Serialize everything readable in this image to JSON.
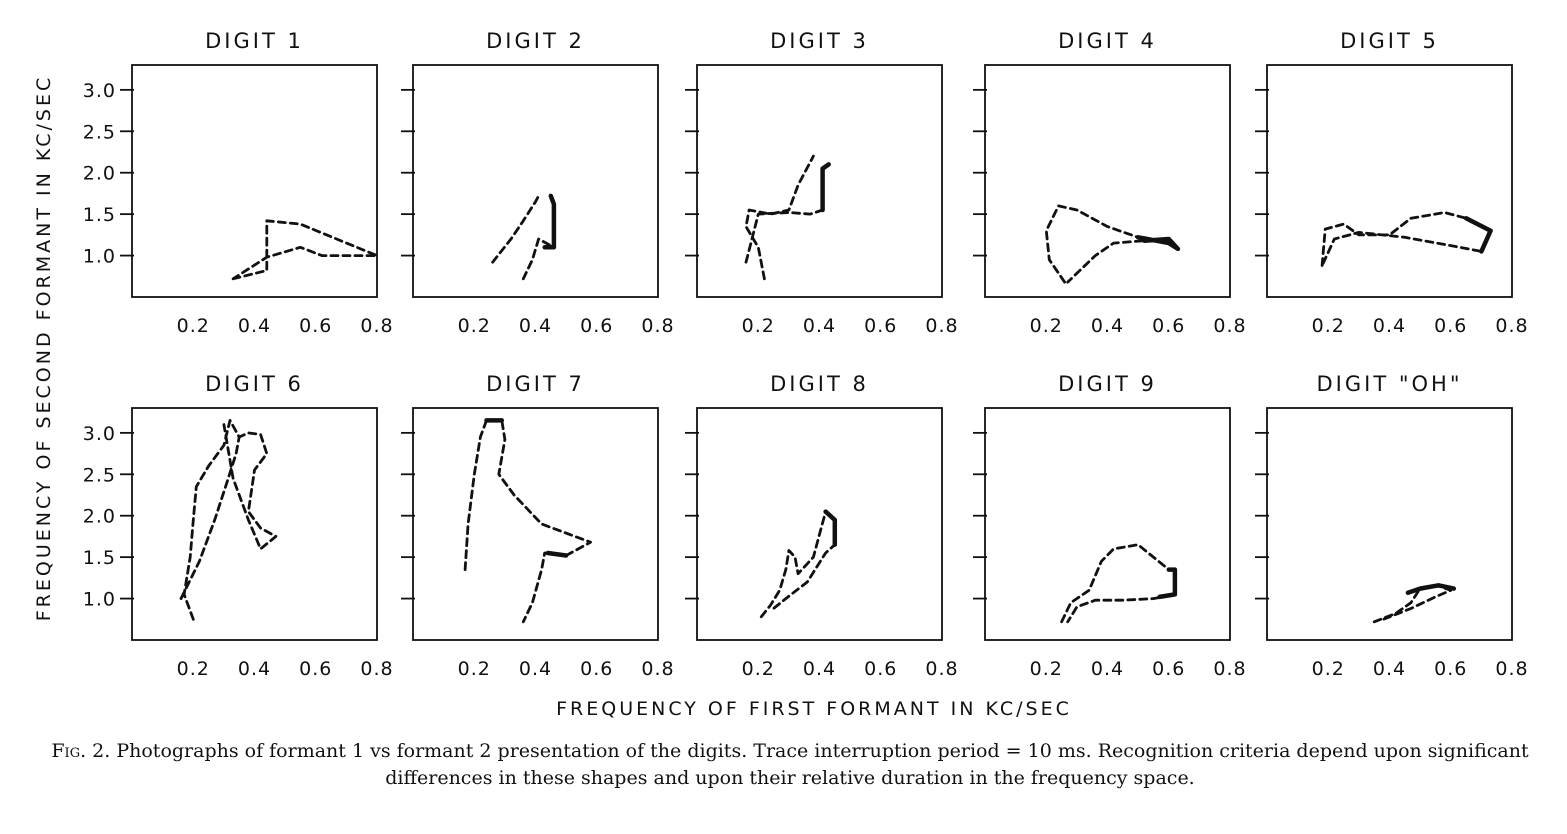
{
  "figure": {
    "y_axis_title": "FREQUENCY OF SECOND FORMANT IN KC/SEC",
    "x_axis_title": "FREQUENCY OF FIRST FORMANT IN KC/SEC",
    "caption_label": "Fig. 2.",
    "caption_text": "Photographs of formant 1 vs formant 2 presentation of the digits. Trace interruption period = 10 ms. Recognition criteria depend upon significant differences in these shapes and upon their relative duration in the frequency space."
  },
  "chart_data": [
    {
      "type": "line",
      "title": "DIGIT 1",
      "x_ticks": [
        "0.2",
        "0.4",
        "0.6",
        "0.8"
      ],
      "y_ticks": [
        "1.0",
        "1.5",
        "2.0",
        "2.5",
        "3.0"
      ],
      "xlim": [
        0,
        0.8
      ],
      "ylim": [
        0.5,
        3.3
      ],
      "series": [
        {
          "x": [
            0.33,
            0.44,
            0.44,
            0.55,
            0.8,
            0.62,
            0.55,
            0.44,
            0.33
          ],
          "y": [
            0.72,
            0.82,
            1.42,
            1.38,
            1.0,
            1.0,
            1.1,
            0.98,
            0.72
          ]
        }
      ],
      "solid_segments": []
    },
    {
      "type": "line",
      "title": "DIGIT 2",
      "x_ticks": [
        "0.2",
        "0.4",
        "0.6",
        "0.8"
      ],
      "y_ticks": [
        "",
        "",
        "",
        "",
        ""
      ],
      "xlim": [
        0,
        0.8
      ],
      "ylim": [
        0.5,
        3.3
      ],
      "series": [
        {
          "x": [
            0.26,
            0.32,
            0.36,
            0.4,
            0.41
          ],
          "y": [
            0.92,
            1.2,
            1.42,
            1.65,
            1.72
          ]
        },
        {
          "x": [
            0.36,
            0.39,
            0.41,
            0.46,
            0.46,
            0.45
          ],
          "y": [
            0.72,
            0.95,
            1.2,
            1.1,
            1.62,
            1.72
          ]
        }
      ],
      "solid_segments": [
        {
          "x": [
            0.43,
            0.46,
            0.46,
            0.45
          ],
          "y": [
            1.1,
            1.1,
            1.62,
            1.72
          ]
        }
      ]
    },
    {
      "type": "line",
      "title": "DIGIT 3",
      "x_ticks": [
        "0.2",
        "0.4",
        "0.6",
        "0.8"
      ],
      "y_ticks": [
        "",
        "",
        "",
        "",
        ""
      ],
      "xlim": [
        0,
        0.8
      ],
      "ylim": [
        0.5,
        3.3
      ],
      "series": [
        {
          "x": [
            0.22,
            0.2,
            0.16,
            0.17,
            0.24,
            0.3,
            0.33,
            0.38
          ],
          "y": [
            0.72,
            1.1,
            1.35,
            1.55,
            1.5,
            1.55,
            1.85,
            2.2
          ]
        },
        {
          "x": [
            0.16,
            0.2,
            0.3,
            0.37,
            0.41,
            0.41,
            0.43
          ],
          "y": [
            0.92,
            1.5,
            1.52,
            1.5,
            1.55,
            2.05,
            2.1
          ]
        }
      ],
      "solid_segments": [
        {
          "x": [
            0.41,
            0.41,
            0.43
          ],
          "y": [
            1.55,
            2.05,
            2.1
          ]
        }
      ]
    },
    {
      "type": "line",
      "title": "DIGIT 4",
      "x_ticks": [
        "0.2",
        "0.4",
        "0.6",
        "0.8"
      ],
      "y_ticks": [
        "",
        "",
        "",
        "",
        ""
      ],
      "xlim": [
        0,
        0.8
      ],
      "ylim": [
        0.5,
        3.3
      ],
      "series": [
        {
          "x": [
            0.26,
            0.21,
            0.2,
            0.24,
            0.3,
            0.4,
            0.5,
            0.6,
            0.63,
            0.6,
            0.52,
            0.42,
            0.36,
            0.27
          ],
          "y": [
            0.68,
            0.95,
            1.3,
            1.6,
            1.55,
            1.35,
            1.22,
            1.15,
            1.08,
            1.2,
            1.18,
            1.15,
            1.0,
            0.68
          ]
        }
      ],
      "solid_segments": [
        {
          "x": [
            0.5,
            0.6,
            0.63,
            0.6,
            0.52
          ],
          "y": [
            1.22,
            1.15,
            1.08,
            1.2,
            1.18
          ]
        }
      ]
    },
    {
      "type": "line",
      "title": "DIGIT 5",
      "x_ticks": [
        "0.2",
        "0.4",
        "0.6",
        "0.8"
      ],
      "y_ticks": [
        "",
        "",
        "",
        "",
        ""
      ],
      "xlim": [
        0,
        0.8
      ],
      "ylim": [
        0.5,
        3.3
      ],
      "series": [
        {
          "x": [
            0.18,
            0.19,
            0.25,
            0.3,
            0.4,
            0.47,
            0.58,
            0.62,
            0.65,
            0.73,
            0.7,
            0.6,
            0.45,
            0.3,
            0.22,
            0.18
          ],
          "y": [
            0.88,
            1.32,
            1.38,
            1.25,
            1.25,
            1.45,
            1.52,
            1.48,
            1.45,
            1.3,
            1.05,
            1.12,
            1.22,
            1.28,
            1.2,
            0.88
          ]
        }
      ],
      "solid_segments": [
        {
          "x": [
            0.65,
            0.73,
            0.7
          ],
          "y": [
            1.45,
            1.3,
            1.05
          ]
        }
      ]
    },
    {
      "type": "line",
      "title": "DIGIT 6",
      "x_ticks": [
        "0.2",
        "0.4",
        "0.6",
        "0.8"
      ],
      "y_ticks": [
        "1.0",
        "1.5",
        "2.0",
        "2.5",
        "3.0"
      ],
      "xlim": [
        0,
        0.8
      ],
      "ylim": [
        0.5,
        3.3
      ],
      "series": [
        {
          "x": [
            0.2,
            0.17,
            0.19,
            0.2,
            0.21,
            0.25,
            0.3,
            0.32,
            0.35,
            0.38,
            0.42,
            0.44,
            0.4,
            0.38,
            0.42,
            0.47,
            0.42,
            0.38,
            0.33,
            0.3
          ],
          "y": [
            0.75,
            1.05,
            1.5,
            1.95,
            2.35,
            2.6,
            2.85,
            3.15,
            2.95,
            3.0,
            2.98,
            2.75,
            2.55,
            2.05,
            1.85,
            1.75,
            1.6,
            1.95,
            2.45,
            3.1
          ]
        },
        {
          "x": [
            0.16,
            0.22,
            0.27,
            0.31,
            0.34,
            0.35
          ],
          "y": [
            1.0,
            1.45,
            1.95,
            2.4,
            2.75,
            2.95
          ]
        }
      ],
      "solid_segments": []
    },
    {
      "type": "line",
      "title": "DIGIT 7",
      "x_ticks": [
        "0.2",
        "0.4",
        "0.6",
        "0.8"
      ],
      "y_ticks": [
        "",
        "",
        "",
        "",
        ""
      ],
      "xlim": [
        0,
        0.8
      ],
      "ylim": [
        0.5,
        3.3
      ],
      "series": [
        {
          "x": [
            0.17,
            0.18,
            0.2,
            0.22,
            0.24,
            0.29,
            0.3,
            0.28,
            0.33,
            0.42,
            0.58,
            0.5,
            0.43,
            0.42,
            0.39,
            0.36
          ],
          "y": [
            1.35,
            1.9,
            2.5,
            2.95,
            3.15,
            3.15,
            2.92,
            2.5,
            2.25,
            1.9,
            1.68,
            1.52,
            1.55,
            1.35,
            0.95,
            0.72
          ]
        }
      ],
      "solid_segments": [
        {
          "x": [
            0.24,
            0.29
          ],
          "y": [
            3.15,
            3.15
          ]
        },
        {
          "x": [
            0.5,
            0.44
          ],
          "y": [
            1.52,
            1.55
          ]
        }
      ]
    },
    {
      "type": "line",
      "title": "DIGIT 8",
      "x_ticks": [
        "0.2",
        "0.4",
        "0.6",
        "0.8"
      ],
      "y_ticks": [
        "",
        "",
        "",
        "",
        ""
      ],
      "xlim": [
        0,
        0.8
      ],
      "ylim": [
        0.5,
        3.3
      ],
      "series": [
        {
          "x": [
            0.21,
            0.24,
            0.27,
            0.29,
            0.3,
            0.32,
            0.33,
            0.38,
            0.42,
            0.45,
            0.45,
            0.42,
            0.36,
            0.29,
            0.24
          ],
          "y": [
            0.78,
            0.92,
            1.1,
            1.35,
            1.58,
            1.5,
            1.3,
            1.5,
            2.05,
            1.95,
            1.65,
            1.55,
            1.2,
            1.0,
            0.85
          ]
        }
      ],
      "solid_segments": [
        {
          "x": [
            0.42,
            0.45,
            0.45
          ],
          "y": [
            2.05,
            1.95,
            1.65
          ]
        }
      ]
    },
    {
      "type": "line",
      "title": "DIGIT 9",
      "x_ticks": [
        "0.2",
        "0.4",
        "0.6",
        "0.8"
      ],
      "y_ticks": [
        "",
        "",
        "",
        "",
        ""
      ],
      "xlim": [
        0,
        0.8
      ],
      "ylim": [
        0.5,
        3.3
      ],
      "series": [
        {
          "x": [
            0.25,
            0.28,
            0.34,
            0.38,
            0.42,
            0.5,
            0.55,
            0.6,
            0.62,
            0.62,
            0.55,
            0.45,
            0.36,
            0.3,
            0.27
          ],
          "y": [
            0.72,
            0.95,
            1.1,
            1.45,
            1.6,
            1.65,
            1.5,
            1.35,
            1.35,
            1.05,
            1.0,
            0.98,
            0.98,
            0.9,
            0.72
          ]
        }
      ],
      "solid_segments": [
        {
          "x": [
            0.6,
            0.62,
            0.62,
            0.57
          ],
          "y": [
            1.35,
            1.35,
            1.05,
            1.02
          ]
        }
      ]
    },
    {
      "type": "line",
      "title": "DIGIT \"OH\"",
      "x_ticks": [
        "0.2",
        "0.4",
        "0.6",
        "0.8"
      ],
      "y_ticks": [
        "",
        "",
        "",
        "",
        ""
      ],
      "xlim": [
        0,
        0.8
      ],
      "ylim": [
        0.5,
        3.3
      ],
      "series": [
        {
          "x": [
            0.35,
            0.42,
            0.47,
            0.5,
            0.56,
            0.6,
            0.55,
            0.47,
            0.38
          ],
          "y": [
            0.72,
            0.82,
            0.95,
            1.12,
            1.15,
            1.1,
            1.02,
            0.88,
            0.75
          ]
        }
      ],
      "solid_segments": [
        {
          "x": [
            0.46,
            0.5,
            0.56,
            0.61
          ],
          "y": [
            1.07,
            1.12,
            1.16,
            1.12
          ]
        }
      ]
    }
  ]
}
